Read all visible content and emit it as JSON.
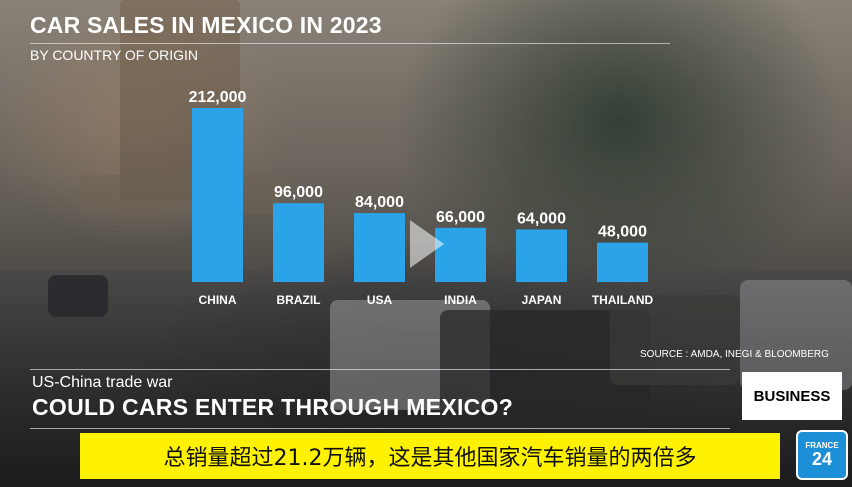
{
  "chart_data": {
    "type": "bar",
    "title": "CAR SALES IN MEXICO IN 2023",
    "subtitle": "BY COUNTRY OF ORIGIN",
    "categories": [
      "CHINA",
      "BRAZIL",
      "USA",
      "INDIA",
      "JAPAN",
      "THAILAND"
    ],
    "values": [
      212000,
      96000,
      84000,
      66000,
      64000,
      48000
    ],
    "value_labels": [
      "212,000",
      "96,000",
      "84,000",
      "66,000",
      "64,000",
      "48,000"
    ],
    "xlabel": "",
    "ylabel": "",
    "ylim": [
      0,
      212000
    ],
    "grid": false,
    "bar_color": "#2aa3e8",
    "source": "SOURCE : AMDA, INEGI & BLOOMBERG"
  },
  "lower_third": {
    "kicker": "US-China trade war",
    "headline": "COULD CARS ENTER THROUGH MEXICO?",
    "badge": "BUSINESS"
  },
  "caption": "总销量超过21.2万辆，这是其他国家汽车销量的两倍多",
  "logo": {
    "top": "FRANCE",
    "number": "24",
    "color": "#1d8fd6"
  },
  "icons": {
    "play": "play-icon"
  }
}
